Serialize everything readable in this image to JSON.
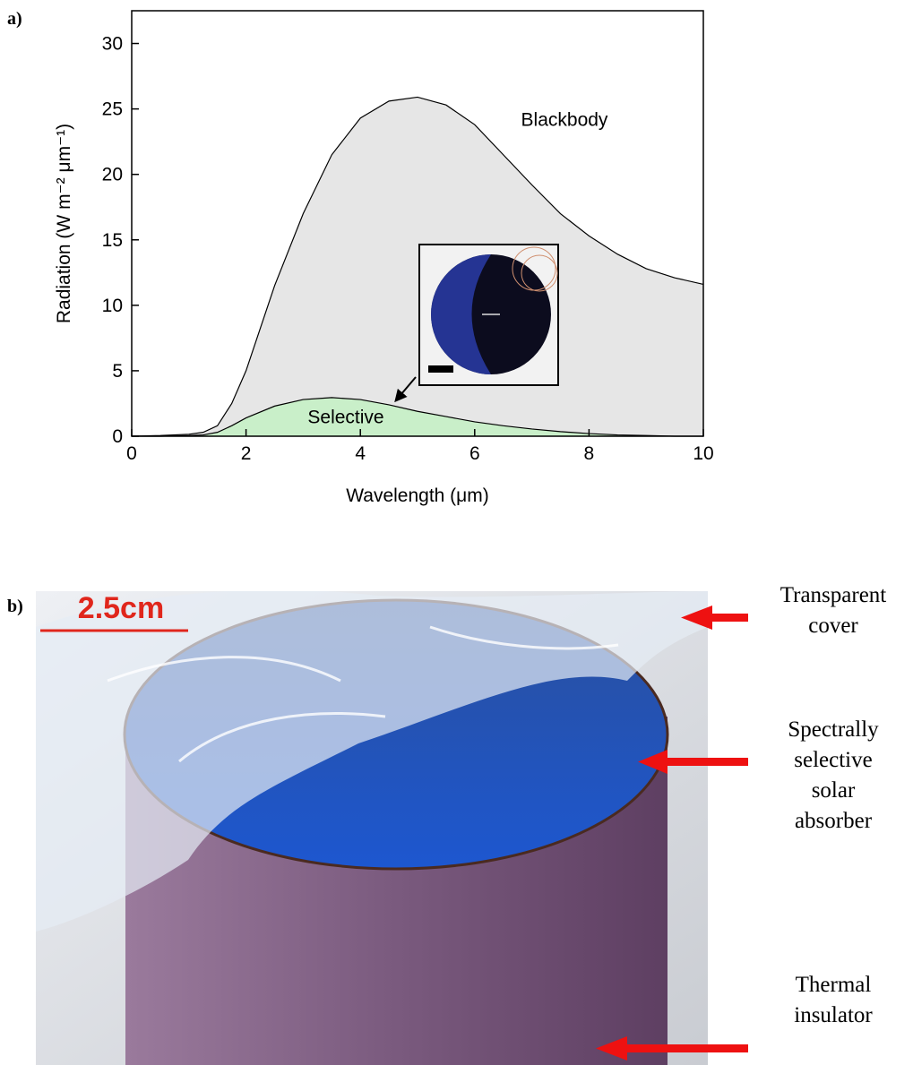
{
  "panel_labels": [
    "a)",
    "b)"
  ],
  "chart_data": {
    "type": "area",
    "x_label": "Wavelength (μm)",
    "y_label": "Radiation (W m⁻² μm⁻¹)",
    "x": [
      0,
      0.5,
      1,
      1.25,
      1.5,
      1.75,
      2,
      2.5,
      3,
      3.5,
      4,
      4.5,
      5,
      5.5,
      6,
      6.5,
      7,
      7.5,
      8,
      8.5,
      9,
      9.5,
      10
    ],
    "series": [
      {
        "name": "Blackbody",
        "color": "#e6e6e6",
        "values": [
          0,
          0.05,
          0.15,
          0.3,
          0.8,
          2.5,
          5,
          11.5,
          17,
          21.5,
          24.3,
          25.6,
          25.9,
          25.3,
          23.8,
          21.5,
          19.2,
          17.0,
          15.3,
          13.9,
          12.8,
          12.1,
          11.6
        ]
      },
      {
        "name": "Selective",
        "color": "#c9efc9",
        "values": [
          0,
          0,
          0.05,
          0.1,
          0.3,
          0.8,
          1.4,
          2.3,
          2.8,
          2.95,
          2.8,
          2.4,
          1.9,
          1.5,
          1.1,
          0.8,
          0.55,
          0.35,
          0.2,
          0.1,
          0.05,
          0,
          0
        ]
      }
    ],
    "xlim": [
      0,
      10
    ],
    "xticks": [
      0,
      2,
      4,
      6,
      8,
      10
    ],
    "ylim": [
      0,
      32.5
    ],
    "yticks": [
      0,
      5,
      10,
      15,
      20,
      25,
      30
    ]
  },
  "photo": {
    "scale_label": "2.5cm",
    "annotations": [
      {
        "lines": [
          "Transparent",
          "cover"
        ]
      },
      {
        "lines": [
          "Spectrally",
          "selective",
          "solar",
          "absorber"
        ]
      },
      {
        "lines": [
          "Thermal",
          "insulator"
        ]
      }
    ]
  }
}
